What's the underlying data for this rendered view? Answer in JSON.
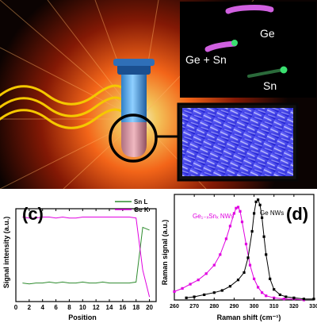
{
  "figure": {
    "inset_labels": {
      "ge": "Ge",
      "ge_sn": "Ge + Sn",
      "sn": "Sn"
    },
    "colors": {
      "sn_line": "#2e8b2e",
      "ge_line": "#e000e0",
      "gesn_raman": "#e000e0",
      "ge_raman": "#000000",
      "glow": "#ff6a1a",
      "waves": "#f5c800",
      "sem_panel": "#3a3aff"
    }
  },
  "chart_data": [
    {
      "type": "line",
      "panel_label": "(c)",
      "xlabel": "Position",
      "ylabel": "Signal intensity (a.u.)",
      "xlim": [
        0,
        21
      ],
      "ylim": [
        0,
        1
      ],
      "xticks": [
        0,
        2,
        4,
        6,
        8,
        10,
        12,
        14,
        16,
        18,
        20
      ],
      "legend_position": "top-right",
      "series": [
        {
          "name": "Sn L",
          "color": "#2e8b2e",
          "x": [
            1,
            2,
            3,
            4,
            5,
            6,
            7,
            8,
            9,
            10,
            11,
            12,
            13,
            14,
            15,
            16,
            17,
            18,
            19,
            20
          ],
          "y": [
            0.2,
            0.19,
            0.2,
            0.2,
            0.21,
            0.2,
            0.21,
            0.2,
            0.2,
            0.21,
            0.2,
            0.2,
            0.21,
            0.2,
            0.2,
            0.2,
            0.2,
            0.21,
            0.8,
            0.77
          ]
        },
        {
          "name": "Ge K",
          "color": "#e000e0",
          "x": [
            1,
            2,
            3,
            4,
            5,
            6,
            7,
            8,
            9,
            10,
            11,
            12,
            13,
            14,
            15,
            16,
            17,
            18,
            19,
            20
          ],
          "y": [
            0.91,
            0.9,
            0.9,
            0.91,
            0.91,
            0.9,
            0.91,
            0.9,
            0.9,
            0.91,
            0.91,
            0.91,
            0.91,
            0.91,
            0.91,
            0.91,
            0.91,
            0.9,
            0.34,
            0.05
          ]
        }
      ]
    },
    {
      "type": "line",
      "panel_label": "(d)",
      "xlabel": "Raman shift (cm⁻¹)",
      "ylabel": "Raman signal (a.u.)",
      "xlim": [
        260,
        330
      ],
      "ylim": [
        0,
        1
      ],
      "xticks": [
        260,
        270,
        280,
        290,
        300,
        310,
        320,
        330
      ],
      "series": [
        {
          "name": "Ge₁₋ₓSnₓ NWs",
          "color": "#e000e0",
          "x": [
            260,
            264,
            268,
            272,
            276,
            280,
            283,
            286,
            288,
            290,
            291,
            292,
            293,
            294,
            296,
            298,
            300,
            302,
            304,
            306,
            310,
            315,
            320,
            325
          ],
          "y": [
            0.08,
            0.11,
            0.15,
            0.19,
            0.25,
            0.33,
            0.43,
            0.58,
            0.7,
            0.82,
            0.87,
            0.88,
            0.84,
            0.74,
            0.53,
            0.33,
            0.2,
            0.12,
            0.07,
            0.04,
            0.02,
            0.01,
            0.01,
            0.0
          ]
        },
        {
          "name": "Ge NWs",
          "color": "#000000",
          "x": [
            266,
            270,
            275,
            280,
            284,
            288,
            292,
            295,
            297,
            299,
            300,
            301,
            302,
            303,
            304,
            305,
            306,
            308,
            310,
            313,
            316,
            320,
            325,
            330
          ],
          "y": [
            0.02,
            0.03,
            0.05,
            0.07,
            0.09,
            0.13,
            0.19,
            0.26,
            0.4,
            0.65,
            0.82,
            0.93,
            0.95,
            0.9,
            0.78,
            0.6,
            0.43,
            0.2,
            0.1,
            0.05,
            0.03,
            0.02,
            0.01,
            0.01
          ]
        }
      ]
    }
  ]
}
